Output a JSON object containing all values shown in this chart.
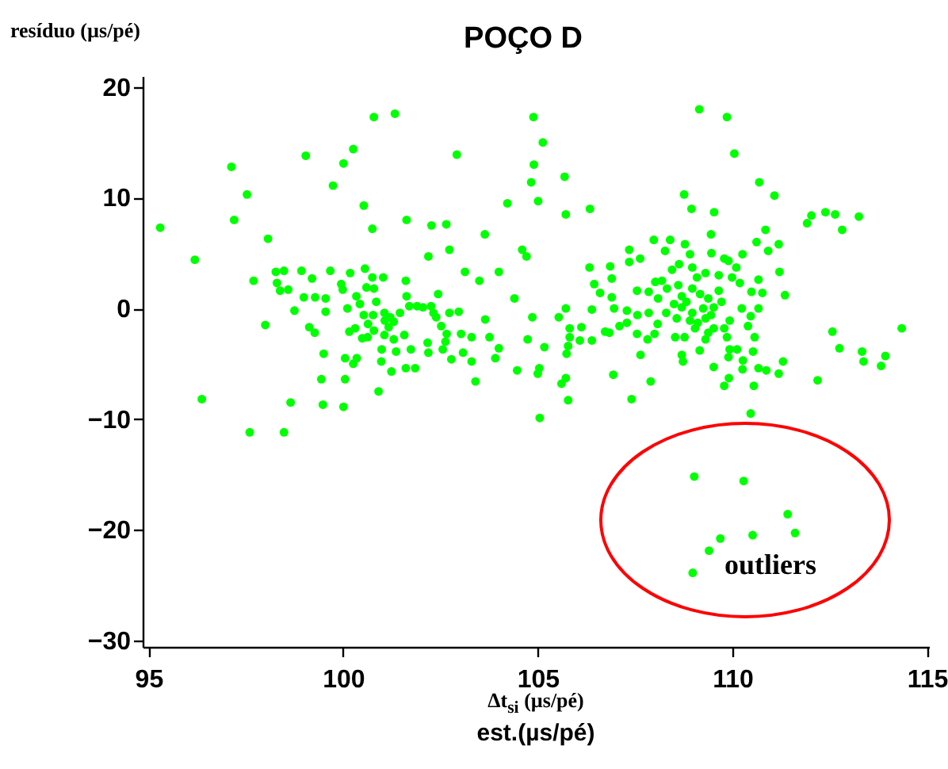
{
  "chart_data": {
    "type": "scatter",
    "title": "POÇO D",
    "xlabel": "Δt$_{si}$  (µs/pé)\nest.(µs/pé)",
    "ylabel": "resíduo (µs/pé)",
    "xlim": [
      94.85,
      115.05
    ],
    "xticks": [
      95,
      100,
      105,
      110,
      115
    ],
    "ylim": [
      -30.6,
      21
    ],
    "yticks": [
      -30,
      -20,
      -10,
      0,
      10,
      20
    ],
    "grid": false,
    "marker": "circle",
    "annotations": [
      "outliers"
    ],
    "series": [
      {
        "color": "#00ff00",
        "x": [
          95.3,
          96.19,
          97.13,
          97.53,
          97.2,
          98.07,
          97.7,
          98.0,
          96.37,
          97.6,
          98.48,
          98.65,
          99.04,
          100.01,
          100.26,
          99.74,
          100.53,
          100.75,
          100.79,
          101.33,
          101.63,
          102.27,
          102.65,
          102.92,
          102.73,
          102.19,
          103.64,
          103.13,
          103.5,
          104.0,
          104.22,
          104.6,
          104.71,
          104.4,
          103.65,
          103.76,
          104.0,
          103.91,
          104.47,
          103.4,
          103.3,
          103.08,
          102.78,
          102.56,
          102.19,
          101.85,
          101.61,
          101.24,
          100.91,
          100.05,
          99.44,
          99.48,
          100.01,
          99.5,
          100.05,
          100.35,
          100.26,
          100.99,
          101.36,
          100.98,
          101.74,
          102.17,
          102.63,
          103.03,
          103.3,
          102.73,
          102.97,
          102.44,
          101.61,
          101.63,
          101.7,
          102.05,
          102.26,
          102.39,
          102.52,
          102.66,
          101.03,
          100.75,
          100.56,
          100.18,
          99.67,
          99.2,
          98.93,
          98.48,
          98.27,
          98.3,
          98.59,
          98.38,
          98.99,
          99.28,
          99.55,
          99.55,
          98.75,
          99.13,
          99.27,
          99.95,
          99.99,
          100.6,
          100.34,
          100.43,
          100.11,
          100.53,
          100.77,
          100.64,
          100.16,
          100.31,
          100.49,
          100.63,
          100.79,
          101.06,
          101.07,
          101.17,
          101.3,
          101.46,
          101.57,
          101.3,
          101.06,
          101.21,
          100.79,
          100.85,
          101.9,
          102.32,
          104.86,
          104.74,
          104.9,
          104.83,
          104.89,
          105.13,
          105.69,
          105.01,
          105.72,
          106.34,
          109.15,
          109.86,
          110.05,
          110.69,
          111.08,
          108.76,
          108.95,
          109.53,
          112.03,
          112.39,
          112.64,
          111.92,
          113.25,
          112.82,
          114.35,
          112.57,
          112.75,
          113.33,
          113.37,
          113.93,
          113.82,
          112.19,
          110.47,
          111.3,
          111.19,
          110.55,
          109.79,
          109.91,
          110.87,
          110.67,
          110.26,
          110.53,
          110.12,
          109.93,
          110.27,
          110.57,
          109.86,
          109.52,
          108.73,
          108.7,
          109.16,
          108.77,
          108.53,
          109.38,
          107.64,
          107.9,
          107.41,
          106.94,
          106.39,
          106.08,
          105.78,
          105.74,
          105.17,
          105.04,
          105.0,
          105.61,
          105.72,
          105.78,
          105.05,
          105.54,
          105.72,
          105.82,
          105.82,
          106.12,
          106.73,
          106.84,
          107.1,
          107.29,
          107.55,
          107.82,
          108.0,
          108.08,
          106.9,
          106.96,
          107.29,
          107.56,
          106.6,
          106.39,
          106.45,
          106.33,
          106.86,
          106.9,
          107.35,
          107.63,
          107.35,
          107.98,
          108.4,
          108.27,
          108.78,
          108.91,
          109.45,
          109.46,
          109.79,
          110.26,
          110.62,
          110.85,
          111.19,
          110.92,
          111.21,
          111.35,
          110.67,
          110.77,
          110.67,
          110.49,
          110.24,
          110.47,
          110.4,
          109.93,
          109.79,
          109.52,
          109.31,
          109.11,
          108.91,
          108.57,
          108.3,
          108.09,
          107.85,
          107.55,
          108.02,
          108.32,
          108.61,
          108.7,
          108.97,
          109.17,
          109.38,
          109.65,
          109.72,
          109.52,
          109.25,
          108.7,
          108.5,
          109.09,
          108.97,
          109.31,
          109.65,
          109.99,
          110.19,
          110.1,
          109.9,
          108.63,
          108.45,
          108.19,
          107.85,
          108.82,
          108.97,
          109.45,
          109.31,
          109.04,
          109.9,
          109.02,
          110.29,
          111.42,
          111.61,
          110.52,
          109.69,
          109.4,
          108.98
        ],
        "values": [
          7.3,
          4.4,
          12.8,
          10.3,
          8.0,
          6.3,
          2.5,
          -1.5,
          -8.2,
          -11.2,
          -11.2,
          -8.5,
          13.8,
          13.1,
          14.4,
          11.1,
          9.3,
          7.2,
          17.3,
          17.6,
          8.0,
          7.5,
          7.6,
          13.9,
          5.3,
          4.7,
          6.7,
          3.3,
          2.5,
          3.3,
          9.5,
          5.3,
          4.7,
          0.9,
          -1.0,
          -2.6,
          -3.6,
          -4.5,
          -5.6,
          -6.6,
          -4.8,
          -4.0,
          -4.6,
          -3.7,
          -4.0,
          -5.4,
          -5.4,
          -5.7,
          -7.5,
          -6.4,
          -6.4,
          -8.7,
          -8.9,
          -4.1,
          -4.5,
          -4.5,
          -5.0,
          -3.7,
          -3.9,
          -4.8,
          -3.7,
          -3.1,
          -3.0,
          -2.3,
          -2.6,
          -0.4,
          -0.3,
          1.3,
          2.5,
          1.1,
          0.2,
          0.1,
          0.2,
          -0.8,
          -1.6,
          -2.3,
          2.8,
          2.8,
          3.6,
          3.2,
          3.4,
          2.7,
          3.4,
          3.4,
          3.3,
          2.3,
          1.7,
          1.6,
          1.0,
          1.0,
          0.9,
          -0.3,
          -0.2,
          -1.7,
          -2.2,
          2.2,
          1.7,
          1.9,
          1.1,
          0.4,
          0.0,
          -0.6,
          -0.6,
          -1.4,
          -2.1,
          -1.8,
          -2.7,
          -2.6,
          -2.0,
          -0.4,
          -1.1,
          -1.7,
          -1.2,
          -0.4,
          -2.4,
          -2.8,
          -2.4,
          -0.8,
          1.8,
          0.6,
          0.2,
          -0.4,
          -0.8,
          -2.8,
          13.0,
          11.4,
          17.3,
          15.0,
          11.9,
          9.7,
          8.5,
          9.0,
          18.0,
          17.3,
          14.0,
          11.4,
          10.2,
          10.3,
          9.0,
          8.7,
          8.4,
          8.7,
          8.5,
          7.7,
          8.3,
          7.1,
          -1.8,
          -2.1,
          -3.6,
          -3.9,
          -4.8,
          -4.3,
          -5.2,
          -6.5,
          -9.5,
          -4.8,
          -5.9,
          -7.0,
          -7.0,
          -6.3,
          -5.6,
          -5.4,
          -5.5,
          -3.9,
          -3.7,
          -3.7,
          -4.7,
          -2.6,
          -2.6,
          -5.3,
          -4.8,
          -4.2,
          -3.8,
          -2.6,
          -2.6,
          -2.2,
          -4.2,
          -6.6,
          -8.2,
          -6.0,
          -2.9,
          -2.9,
          -3.4,
          -4.1,
          -3.5,
          -5.4,
          -5.9,
          -6.8,
          -6.3,
          -8.3,
          -9.9,
          -0.8,
          0.0,
          -1.8,
          -2.6,
          -1.7,
          -2.1,
          -2.2,
          -1.6,
          -1.3,
          -2.3,
          -2.8,
          -2.3,
          -1.4,
          1.0,
          0.0,
          -0.2,
          -0.6,
          1.4,
          -0.1,
          2.2,
          3.7,
          3.8,
          2.7,
          4.2,
          4.5,
          5.3,
          6.2,
          6.2,
          5.2,
          5.8,
          4.9,
          6.7,
          5.0,
          4.5,
          4.9,
          6.0,
          7.1,
          5.8,
          5.2,
          3.3,
          1.2,
          2.6,
          1.4,
          0.0,
          1.5,
          0.0,
          -0.7,
          -1.6,
          -1.1,
          -1.8,
          -1.8,
          -0.9,
          -1.3,
          -1.1,
          -0.9,
          -0.4,
          0.9,
          1.5,
          1.6,
          2.4,
          1.8,
          2.1,
          1.1,
          1.8,
          1.3,
          0.9,
          1.6,
          0.6,
          0.1,
          0.0,
          0.1,
          0.4,
          2.8,
          3.7,
          3.2,
          3.0,
          2.8,
          2.3,
          3.7,
          4.3,
          4.0,
          3.5,
          2.5,
          -0.4,
          0.6,
          -0.4,
          -0.6,
          -2.8,
          -1.8,
          -4.4,
          -15.2,
          -15.6,
          -18.6,
          -20.3,
          -20.5,
          -20.8,
          -21.9,
          -23.9
        ]
      }
    ]
  }
}
